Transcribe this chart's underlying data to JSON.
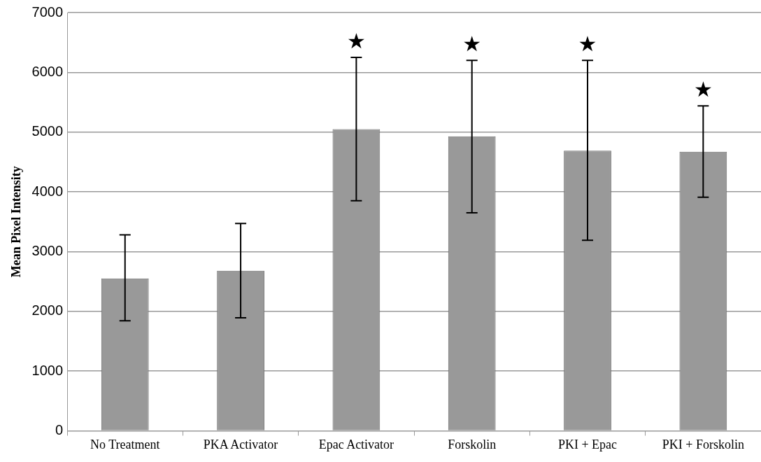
{
  "chart_data": {
    "type": "bar",
    "ylabel": "Mean Pixel Intensity",
    "categories": [
      "No Treatment",
      "PKA Activator",
      "Epac Activator",
      "Forskolin",
      "PKI + Epac",
      "PKI + Forskolin"
    ],
    "values": [
      2550,
      2680,
      5050,
      4930,
      4690,
      4670
    ],
    "errors": [
      [
        1840,
        3280
      ],
      [
        1890,
        3470
      ],
      [
        3850,
        6250
      ],
      [
        3650,
        6200
      ],
      [
        3190,
        6200
      ],
      [
        3910,
        5440
      ]
    ],
    "color": "#999999",
    "ylim": [
      0,
      7000
    ],
    "yticks": [
      0,
      1000,
      2000,
      3000,
      4000,
      5000,
      6000,
      7000
    ],
    "grid": "y",
    "legend": false,
    "annotations": [
      {
        "text": "★",
        "x": "Epac Activator",
        "y": 6250
      },
      {
        "text": "★",
        "x": "Forskolin",
        "y": 6200
      },
      {
        "text": "★",
        "x": "PKI + Epac",
        "y": 6200
      },
      {
        "text": "★",
        "x": "PKI + Forskolin",
        "y": 5440
      }
    ]
  }
}
